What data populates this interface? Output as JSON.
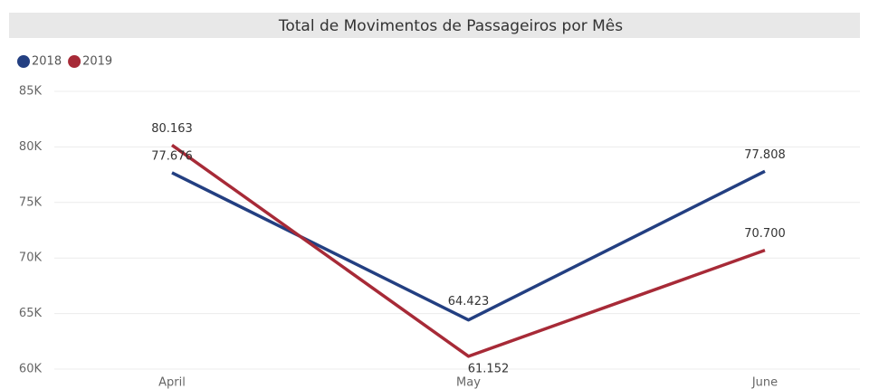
{
  "chart_data": {
    "type": "line",
    "title": "Total de Movimentos de Passageiros por Mês",
    "categories": [
      "April",
      "May",
      "June"
    ],
    "series": [
      {
        "name": "2018",
        "color": "#233f81",
        "values": [
          77676,
          64423,
          77808
        ],
        "value_labels": [
          "77.676",
          "64.423",
          "77.808"
        ]
      },
      {
        "name": "2019",
        "color": "#a72a37",
        "values": [
          80163,
          61152,
          70700
        ],
        "value_labels": [
          "80.163",
          "61.152",
          "70.700"
        ]
      }
    ],
    "ylim": [
      60000,
      85000
    ],
    "yticks": [
      {
        "value": 60000,
        "label": "60K"
      },
      {
        "value": 65000,
        "label": "65K"
      },
      {
        "value": 70000,
        "label": "70K"
      },
      {
        "value": 75000,
        "label": "75K"
      },
      {
        "value": 80000,
        "label": "80K"
      },
      {
        "value": 85000,
        "label": "85K"
      }
    ],
    "grid": true,
    "legend": "top-left"
  }
}
